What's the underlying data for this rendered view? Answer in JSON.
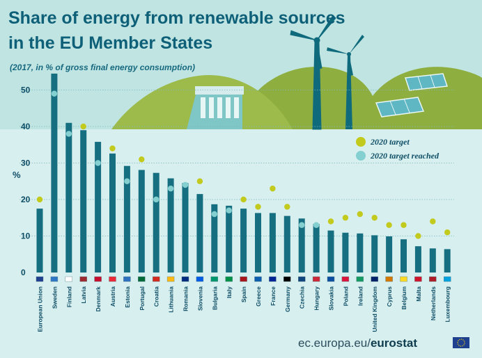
{
  "title_line1": "Share of energy from renewable sources",
  "title_line2": "in the EU Member States",
  "subtitle": "(2017, in % of gross final energy consumption)",
  "footer": {
    "site_prefix": "ec.europa.eu/",
    "site_brand": "eurostat"
  },
  "colors": {
    "bar": "#166f80",
    "target": "#c3ca1e",
    "target_reached": "#84d0d1",
    "title": "#0e5f78",
    "hill": "#8eae3f",
    "background": "#d7efee"
  },
  "chart_data": {
    "type": "bar",
    "title": "Share of energy from renewable sources in the EU Member States",
    "subtitle": "(2017, in % of gross final energy consumption)",
    "ylabel": "%",
    "ylim": [
      0,
      55
    ],
    "yticks": [
      0,
      10,
      20,
      30,
      40,
      50
    ],
    "grid": true,
    "legend_position": "top-right",
    "legend": [
      "2020 target",
      "2020 target reached"
    ],
    "categories": [
      "European Union",
      "Sweden",
      "Finland",
      "Latvia",
      "Denmark",
      "Austria",
      "Estonia",
      "Portugal",
      "Croatia",
      "Lithuania",
      "Romania",
      "Slovenia",
      "Bulgaria",
      "Italy",
      "Spain",
      "Greece",
      "France",
      "Germany",
      "Czechia",
      "Hungary",
      "Slovakia",
      "Poland",
      "Ireland",
      "United Kingdom",
      "Cyprus",
      "Belgium",
      "Malta",
      "Netherlands",
      "Luxembourg"
    ],
    "values": [
      17.5,
      54.5,
      41,
      39,
      35.8,
      32.6,
      29.2,
      28.1,
      27.3,
      25.8,
      24.5,
      21.5,
      18.7,
      18.3,
      17.5,
      16.3,
      16.3,
      15.5,
      14.8,
      13.3,
      11.5,
      10.9,
      10.7,
      10.2,
      9.9,
      9.1,
      7.2,
      6.6,
      6.4
    ],
    "target_2020": [
      20,
      49,
      38,
      40,
      30,
      34,
      25,
      31,
      20,
      23,
      24,
      25,
      16,
      17,
      20,
      18,
      23,
      18,
      13,
      13,
      14,
      15,
      16,
      15,
      13,
      13,
      10,
      14,
      11
    ],
    "target_reached": [
      false,
      true,
      true,
      false,
      true,
      false,
      true,
      false,
      true,
      true,
      true,
      false,
      true,
      true,
      false,
      false,
      false,
      false,
      true,
      true,
      false,
      false,
      false,
      false,
      false,
      false,
      false,
      false,
      false
    ]
  }
}
